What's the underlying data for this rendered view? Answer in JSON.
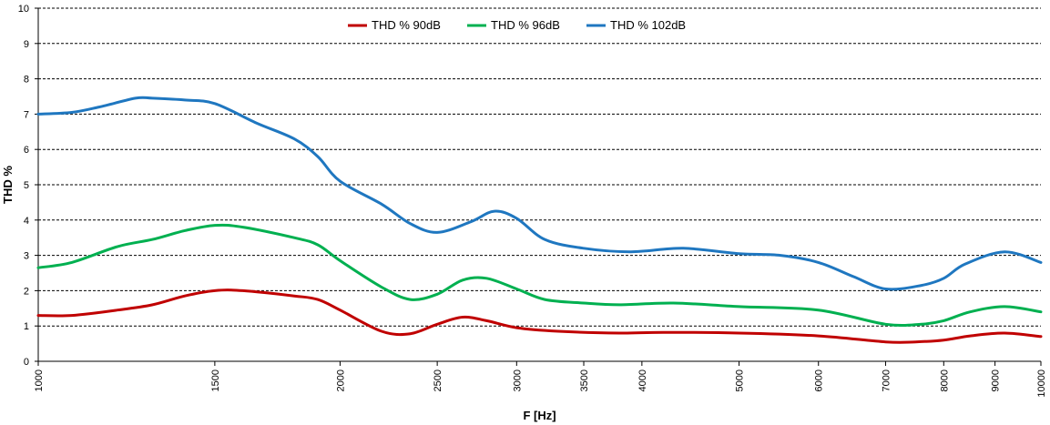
{
  "chart_data": {
    "type": "line",
    "xlabel": "F [Hz]",
    "ylabel": "THD %",
    "xscale": "log",
    "xlim": [
      1000,
      10000
    ],
    "ylim": [
      0,
      10
    ],
    "grid": "horizontal dashed",
    "legend_position": "top-center",
    "xticks": [
      1000,
      1500,
      2000,
      2500,
      3000,
      3500,
      4000,
      5000,
      6000,
      7000,
      8000,
      9000,
      10000
    ],
    "yticks": [
      0,
      1,
      2,
      3,
      4,
      5,
      6,
      7,
      8,
      9,
      10
    ],
    "series": [
      {
        "name": "THD % 90dB",
        "color": "#C00000",
        "points": [
          [
            1000,
            1.3
          ],
          [
            1080,
            1.3
          ],
          [
            1200,
            1.45
          ],
          [
            1300,
            1.6
          ],
          [
            1400,
            1.85
          ],
          [
            1500,
            2.0
          ],
          [
            1600,
            2.0
          ],
          [
            1800,
            1.85
          ],
          [
            1900,
            1.75
          ],
          [
            2000,
            1.45
          ],
          [
            2200,
            0.85
          ],
          [
            2350,
            0.78
          ],
          [
            2500,
            1.05
          ],
          [
            2650,
            1.25
          ],
          [
            2800,
            1.15
          ],
          [
            3000,
            0.95
          ],
          [
            3300,
            0.85
          ],
          [
            3800,
            0.8
          ],
          [
            4200,
            0.82
          ],
          [
            5000,
            0.8
          ],
          [
            6000,
            0.72
          ],
          [
            7000,
            0.55
          ],
          [
            7500,
            0.55
          ],
          [
            8000,
            0.6
          ],
          [
            8500,
            0.72
          ],
          [
            9200,
            0.8
          ],
          [
            10000,
            0.7
          ]
        ]
      },
      {
        "name": "THD % 96dB",
        "color": "#00B050",
        "points": [
          [
            1000,
            2.65
          ],
          [
            1080,
            2.8
          ],
          [
            1200,
            3.25
          ],
          [
            1300,
            3.45
          ],
          [
            1400,
            3.7
          ],
          [
            1500,
            3.85
          ],
          [
            1600,
            3.8
          ],
          [
            1800,
            3.5
          ],
          [
            1900,
            3.3
          ],
          [
            2000,
            2.85
          ],
          [
            2200,
            2.1
          ],
          [
            2350,
            1.75
          ],
          [
            2500,
            1.9
          ],
          [
            2650,
            2.3
          ],
          [
            2800,
            2.35
          ],
          [
            3000,
            2.05
          ],
          [
            3200,
            1.75
          ],
          [
            3500,
            1.65
          ],
          [
            3800,
            1.6
          ],
          [
            4300,
            1.65
          ],
          [
            5000,
            1.55
          ],
          [
            6000,
            1.45
          ],
          [
            7000,
            1.05
          ],
          [
            7600,
            1.05
          ],
          [
            8000,
            1.15
          ],
          [
            8500,
            1.4
          ],
          [
            9200,
            1.55
          ],
          [
            10000,
            1.4
          ]
        ]
      },
      {
        "name": "THD % 102dB",
        "color": "#1F77C0",
        "points": [
          [
            1000,
            7.0
          ],
          [
            1080,
            7.05
          ],
          [
            1150,
            7.2
          ],
          [
            1250,
            7.45
          ],
          [
            1300,
            7.45
          ],
          [
            1400,
            7.4
          ],
          [
            1500,
            7.3
          ],
          [
            1650,
            6.75
          ],
          [
            1800,
            6.3
          ],
          [
            1900,
            5.8
          ],
          [
            2000,
            5.1
          ],
          [
            2200,
            4.45
          ],
          [
            2350,
            3.9
          ],
          [
            2500,
            3.65
          ],
          [
            2700,
            3.95
          ],
          [
            2850,
            4.25
          ],
          [
            3000,
            4.05
          ],
          [
            3200,
            3.45
          ],
          [
            3500,
            3.2
          ],
          [
            3900,
            3.1
          ],
          [
            4400,
            3.2
          ],
          [
            5000,
            3.05
          ],
          [
            5500,
            3.0
          ],
          [
            6000,
            2.8
          ],
          [
            6500,
            2.4
          ],
          [
            7000,
            2.05
          ],
          [
            7600,
            2.15
          ],
          [
            8000,
            2.35
          ],
          [
            8400,
            2.75
          ],
          [
            9200,
            3.1
          ],
          [
            10000,
            2.8
          ]
        ]
      }
    ]
  }
}
